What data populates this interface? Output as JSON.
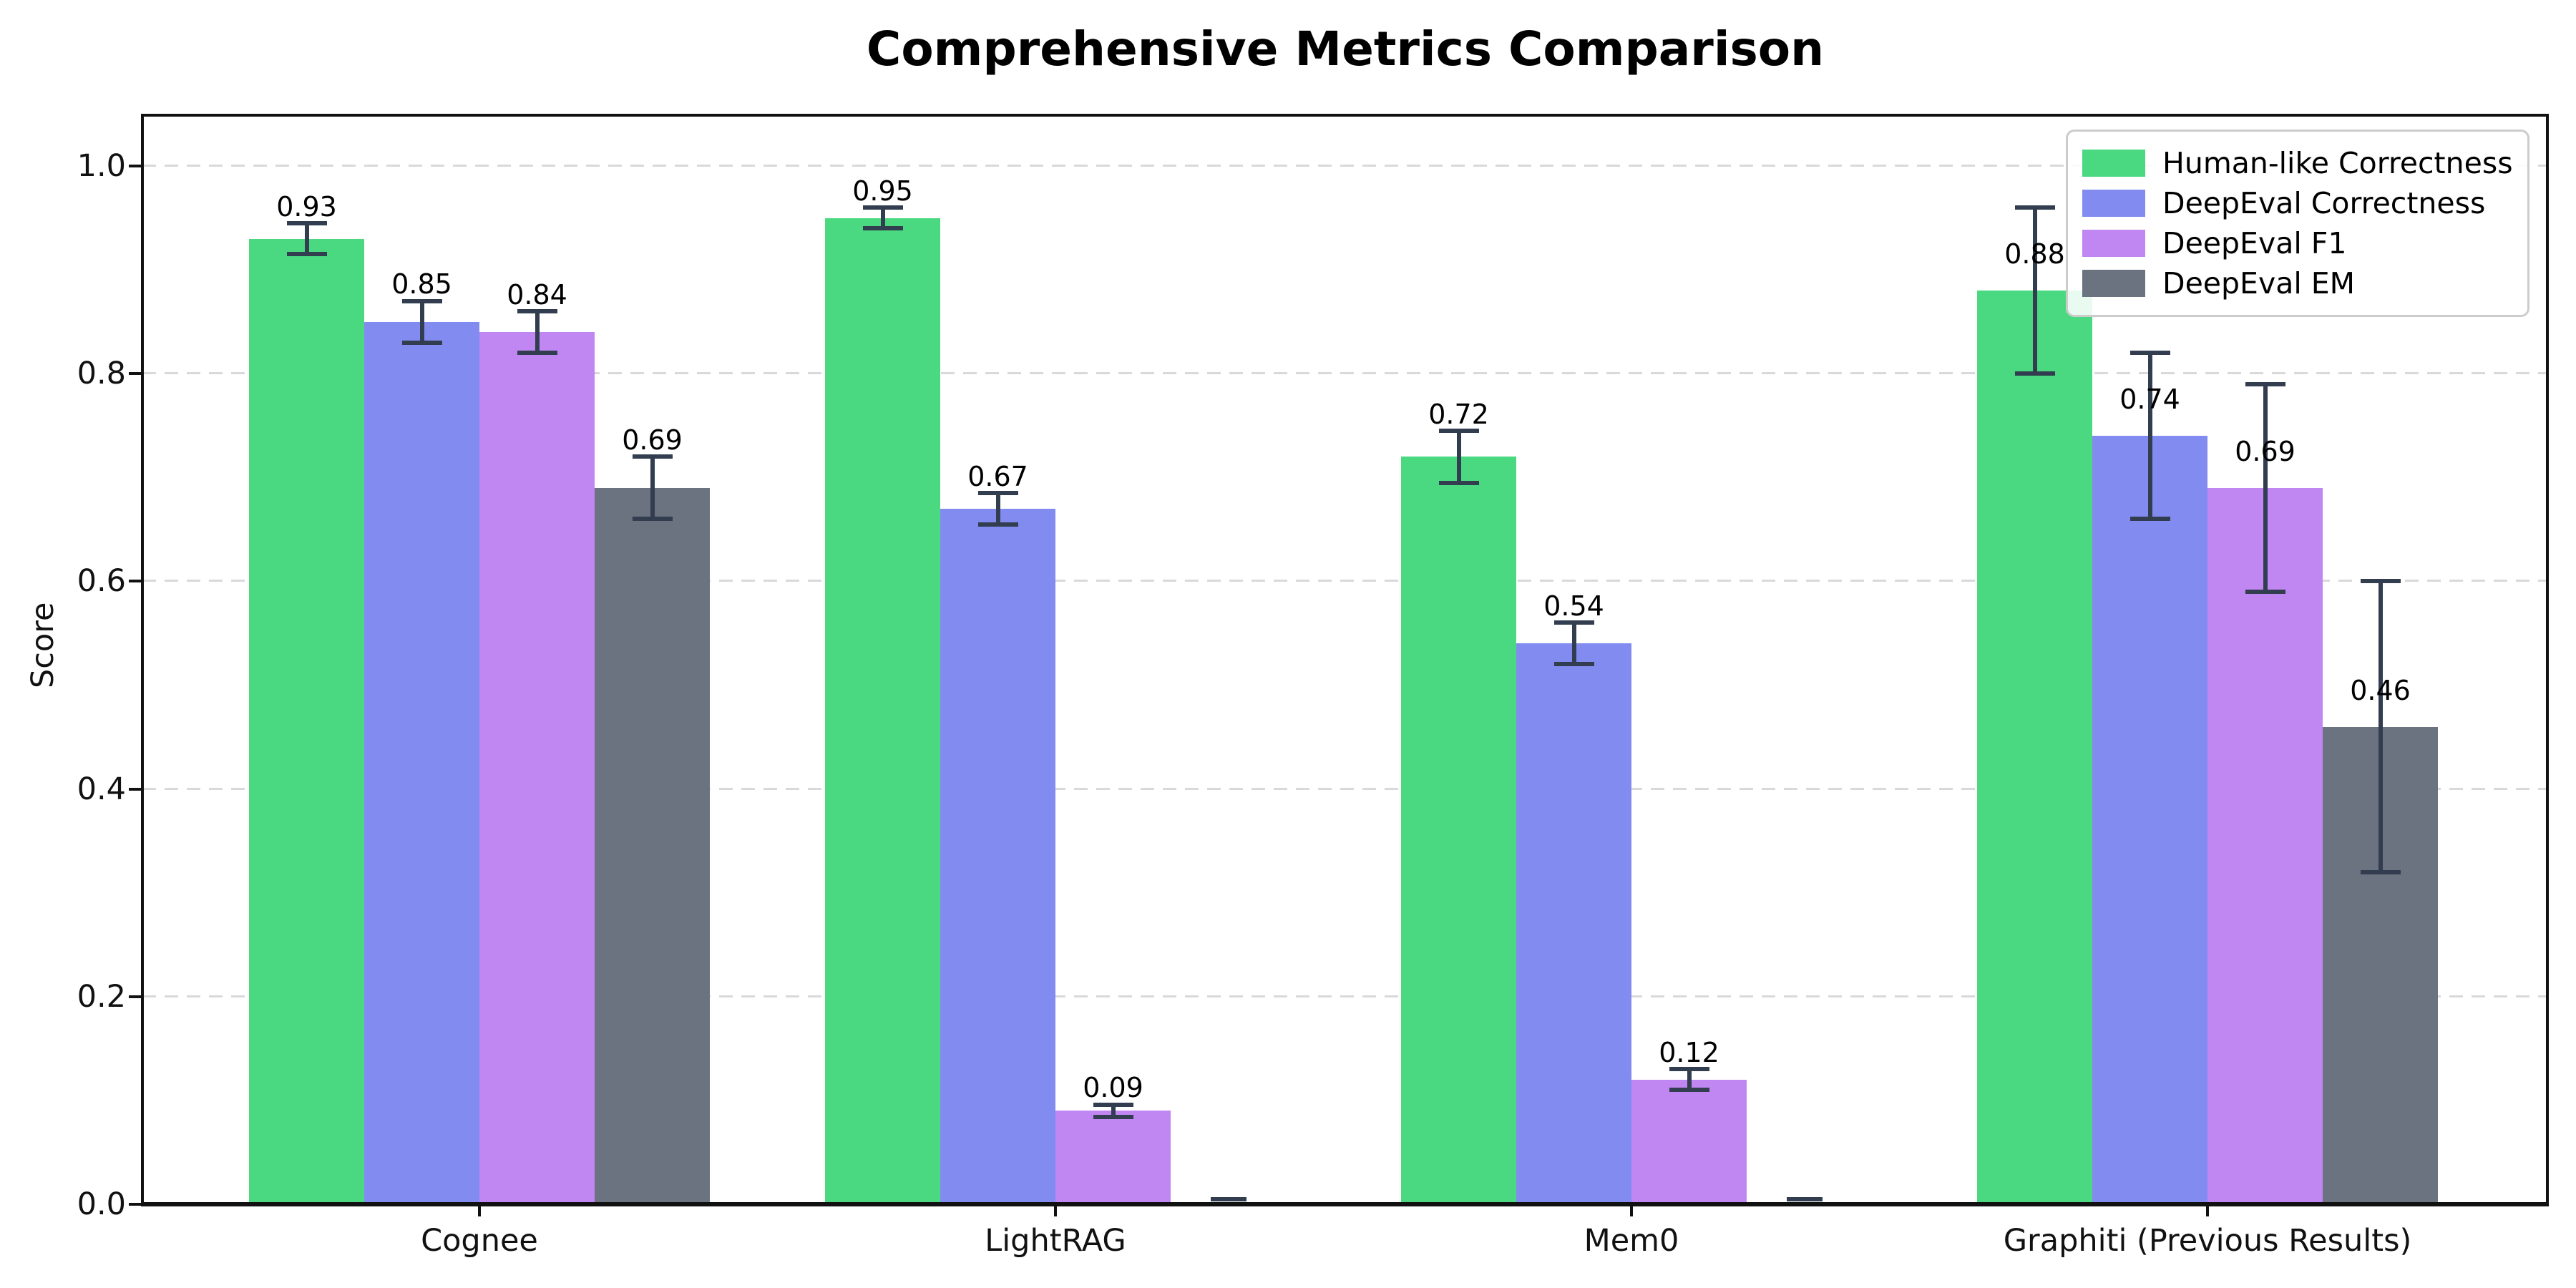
{
  "chart_data": {
    "type": "bar",
    "title": "Comprehensive Metrics Comparison",
    "ylabel": "Score",
    "xlabel": "",
    "categories": [
      "Cognee",
      "LightRAG",
      "Mem0",
      "Graphiti (Previous Results)"
    ],
    "series": [
      {
        "name": "Human-like Correctness",
        "color": "#4ad981",
        "values": [
          0.93,
          0.95,
          0.72,
          0.88
        ],
        "errors": [
          0.015,
          0.01,
          0.025,
          0.08
        ],
        "labels": [
          "0.93",
          "0.95",
          "0.72",
          "0.88"
        ]
      },
      {
        "name": "DeepEval Correctness",
        "color": "#828cf0",
        "values": [
          0.85,
          0.67,
          0.54,
          0.74
        ],
        "errors": [
          0.02,
          0.015,
          0.02,
          0.08
        ],
        "labels": [
          "0.85",
          "0.67",
          "0.54",
          "0.74"
        ]
      },
      {
        "name": "DeepEval F1",
        "color": "#c087f2",
        "values": [
          0.84,
          0.09,
          0.12,
          0.69
        ],
        "errors": [
          0.02,
          0.006,
          0.01,
          0.1
        ],
        "labels": [
          "0.84",
          "0.09",
          "0.12",
          "0.69"
        ]
      },
      {
        "name": "DeepEval EM",
        "color": "#6b7280",
        "values": [
          0.69,
          0.0,
          0.0,
          0.46
        ],
        "errors": [
          0.03,
          0.004,
          0.004,
          0.14
        ],
        "labels": [
          "0.69",
          "",
          "",
          "0.46"
        ]
      }
    ],
    "yticks": [
      "0.0",
      "0.2",
      "0.4",
      "0.6",
      "0.8",
      "1.0"
    ],
    "ylim": [
      0,
      1.05
    ],
    "grid": "horizontal-dashed",
    "legend_position": "upper right"
  },
  "colors": {
    "error_bar": "#323d4f",
    "grid_line": "#d9d9d9",
    "axis": "#111111",
    "background": "#ffffff"
  }
}
